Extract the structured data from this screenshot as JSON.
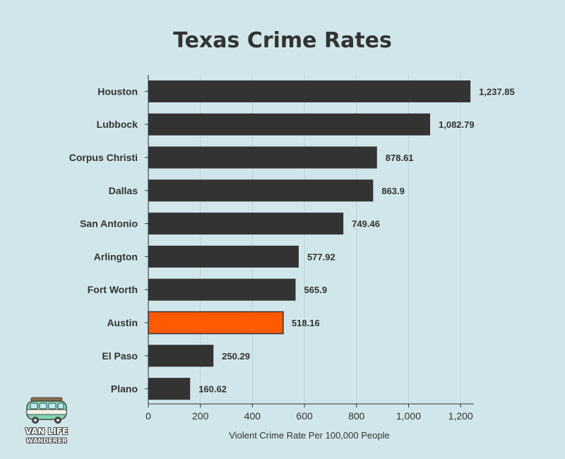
{
  "chart_data": {
    "type": "bar",
    "orientation": "horizontal",
    "title": "Texas Crime Rates",
    "xlabel": "Violent Crime Rate Per 100,000 People",
    "ylabel": "",
    "xlim": [
      0,
      1250
    ],
    "xticks": [
      0,
      200,
      400,
      600,
      800,
      1000,
      1200
    ],
    "xtick_labels": [
      "0",
      "200",
      "400",
      "600",
      "800",
      "1,000",
      "1,200"
    ],
    "grid": true,
    "categories": [
      "Houston",
      "Lubbock",
      "Corpus Christi",
      "Dallas",
      "San Antonio",
      "Arlington",
      "Fort Worth",
      "Austin",
      "El Paso",
      "Plano"
    ],
    "values": [
      1237.85,
      1082.79,
      878.61,
      863.9,
      749.46,
      577.92,
      565.9,
      518.16,
      250.29,
      160.62
    ],
    "value_labels": [
      "1,237.85",
      "1,082.79",
      "878.61",
      "863.9",
      "749.46",
      "577.92",
      "565.9",
      "518.16",
      "250.29",
      "160.62"
    ],
    "highlight": "Austin",
    "colors": {
      "bar": "#333333",
      "highlight": "#ff5a00",
      "background": "#d0e6ea",
      "grid": "#bcd3d7"
    }
  },
  "logo": {
    "line1": "VAN LIFE",
    "line2": "WANDERER"
  }
}
